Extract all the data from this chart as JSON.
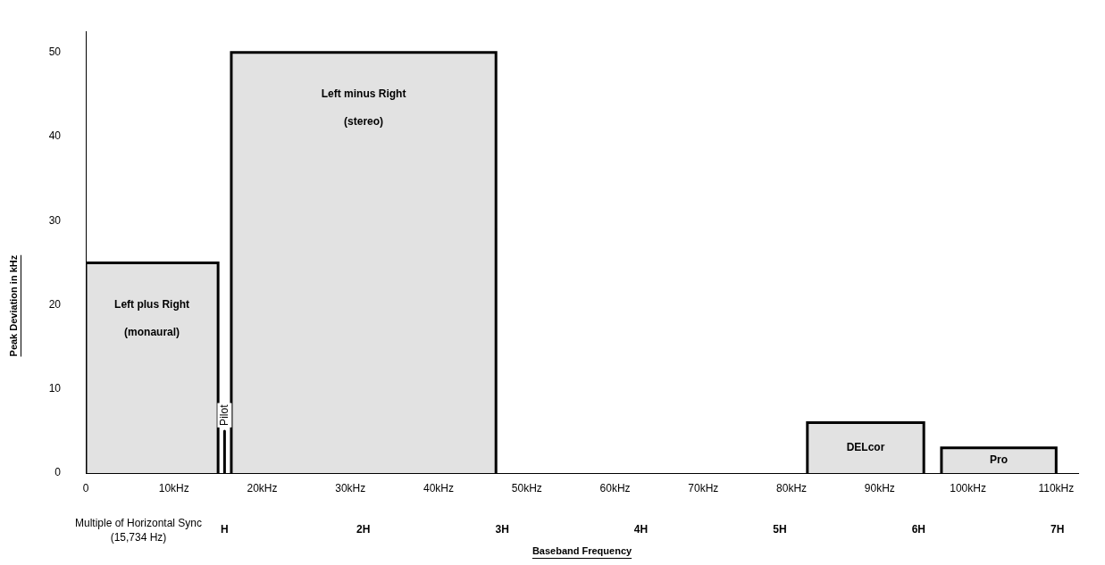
{
  "chart_data": {
    "type": "area",
    "xlabel": "Baseband Frequency",
    "ylabel": "Peak Deviation in kHz",
    "x2label": "Multiple of Horizontal Sync (15,734 Hz)",
    "xlim": [
      0,
      112.5
    ],
    "xticks": [
      0,
      {
        "value": 10,
        "label": "10kHz"
      },
      {
        "value": 20,
        "label": "20kHz"
      },
      {
        "value": 30,
        "label": "30kHz"
      },
      {
        "value": 40,
        "label": "40kHz"
      },
      {
        "value": 50,
        "label": "50kHz"
      },
      {
        "value": 60,
        "label": "60kHz"
      },
      {
        "value": 70,
        "label": "70kHz"
      },
      {
        "value": 80,
        "label": "80kHz"
      },
      {
        "value": 90,
        "label": "90kHz"
      },
      {
        "value": 100,
        "label": "100kHz"
      },
      {
        "value": 110,
        "label": "110kHz"
      }
    ],
    "x2lim": [
      0,
      7.15
    ],
    "x2ticks": [
      {
        "value": 1,
        "label": "H"
      },
      {
        "value": 2,
        "label": "2H"
      },
      {
        "value": 3,
        "label": "3H"
      },
      {
        "value": 4,
        "label": "4H"
      },
      {
        "value": 5,
        "label": "5H"
      },
      {
        "value": 6,
        "label": "6H"
      },
      {
        "value": 7,
        "label": "7H"
      }
    ],
    "ylim": [
      0,
      52.5
    ],
    "yticks": [
      0,
      10,
      20,
      30,
      40,
      50
    ],
    "grid": false,
    "legend": false,
    "marker": "none",
    "series": [
      {
        "name": "Left plus Right (monaural)",
        "color": "#e2e2e2",
        "x": [
          0,
          0,
          15,
          15
        ],
        "values": [
          0,
          25,
          25,
          0
        ]
      },
      {
        "name": "Pilot",
        "type": "line",
        "color": "#000000",
        "x": [
          15.734,
          15.734
        ],
        "values": [
          0,
          5
        ]
      },
      {
        "name": "Left minus Right (stereo)",
        "color": "#e2e2e2",
        "x": [
          16.5,
          16.5,
          46.5,
          46.5
        ],
        "values": [
          0,
          50,
          50,
          0
        ]
      },
      {
        "name": "DELcor",
        "color": "#e2e2e2",
        "x": [
          81.8,
          81.8,
          95,
          95
        ],
        "values": [
          0,
          6,
          6,
          0
        ]
      },
      {
        "name": "Pro",
        "color": "#e2e2e2",
        "x": [
          97,
          97,
          110,
          110
        ],
        "values": [
          0,
          3,
          3,
          0
        ]
      }
    ]
  }
}
